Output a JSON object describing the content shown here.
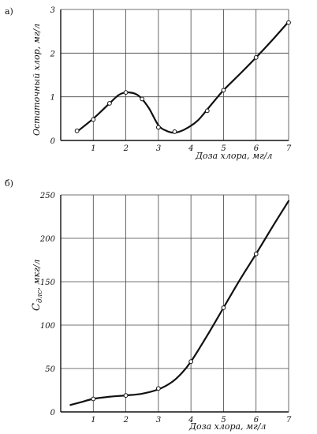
{
  "chart_data": [
    {
      "panel_label": "а)",
      "type": "line",
      "xlabel": "Доза хлора, мг/л",
      "ylabel": "Остаточный хлор, мг/л",
      "x_ticks": [
        "1",
        "2",
        "3",
        "4",
        "5",
        "6",
        "7"
      ],
      "y_ticks": [
        "0",
        "1",
        "2",
        "3"
      ],
      "xlim": [
        0,
        7
      ],
      "ylim": [
        0,
        3
      ],
      "grid": true,
      "markers": "open-circle",
      "points": [
        {
          "x": 0.5,
          "y": 0.22
        },
        {
          "x": 1.0,
          "y": 0.48
        },
        {
          "x": 1.5,
          "y": 0.85
        },
        {
          "x": 2.0,
          "y": 1.1
        },
        {
          "x": 2.5,
          "y": 0.95
        },
        {
          "x": 3.0,
          "y": 0.3
        },
        {
          "x": 3.5,
          "y": 0.2
        },
        {
          "x": 4.5,
          "y": 0.68
        },
        {
          "x": 5.0,
          "y": 1.15
        },
        {
          "x": 6.0,
          "y": 1.9
        },
        {
          "x": 7.0,
          "y": 2.7
        }
      ],
      "curve": [
        {
          "x": 0.5,
          "y": 0.2
        },
        {
          "x": 1.0,
          "y": 0.5
        },
        {
          "x": 1.5,
          "y": 0.85
        },
        {
          "x": 1.8,
          "y": 1.05
        },
        {
          "x": 2.1,
          "y": 1.1
        },
        {
          "x": 2.4,
          "y": 1.02
        },
        {
          "x": 2.7,
          "y": 0.75
        },
        {
          "x": 3.0,
          "y": 0.35
        },
        {
          "x": 3.25,
          "y": 0.22
        },
        {
          "x": 3.5,
          "y": 0.18
        },
        {
          "x": 3.8,
          "y": 0.25
        },
        {
          "x": 4.2,
          "y": 0.45
        },
        {
          "x": 4.6,
          "y": 0.8
        },
        {
          "x": 5.0,
          "y": 1.15
        },
        {
          "x": 5.5,
          "y": 1.52
        },
        {
          "x": 6.0,
          "y": 1.9
        },
        {
          "x": 6.5,
          "y": 2.3
        },
        {
          "x": 7.0,
          "y": 2.72
        }
      ]
    },
    {
      "panel_label": "б)",
      "type": "line",
      "xlabel": "Доза хлора, мг/л",
      "ylabel": "C_ДЛС, мкг/л",
      "ylabel_main": "C",
      "ylabel_sub": "длс",
      "ylabel_rest": ", мкг/л",
      "x_ticks": [
        "1",
        "2",
        "3",
        "4",
        "5",
        "6",
        "7"
      ],
      "y_ticks": [
        "0",
        "50",
        "100",
        "150",
        "200",
        "250"
      ],
      "xlim": [
        0,
        7
      ],
      "ylim": [
        0,
        250
      ],
      "grid": true,
      "markers": "open-circle",
      "points": [
        {
          "x": 1.0,
          "y": 15
        },
        {
          "x": 2.0,
          "y": 19
        },
        {
          "x": 3.0,
          "y": 27
        },
        {
          "x": 4.0,
          "y": 58
        },
        {
          "x": 5.0,
          "y": 120
        },
        {
          "x": 6.0,
          "y": 182
        }
      ],
      "curve": [
        {
          "x": 0.3,
          "y": 8
        },
        {
          "x": 0.6,
          "y": 11
        },
        {
          "x": 1.0,
          "y": 15
        },
        {
          "x": 1.5,
          "y": 17.5
        },
        {
          "x": 2.0,
          "y": 19
        },
        {
          "x": 2.5,
          "y": 21
        },
        {
          "x": 3.0,
          "y": 26
        },
        {
          "x": 3.4,
          "y": 34
        },
        {
          "x": 3.7,
          "y": 44
        },
        {
          "x": 4.0,
          "y": 58
        },
        {
          "x": 4.5,
          "y": 88
        },
        {
          "x": 5.0,
          "y": 120
        },
        {
          "x": 5.5,
          "y": 152
        },
        {
          "x": 6.0,
          "y": 182
        },
        {
          "x": 6.5,
          "y": 213
        },
        {
          "x": 7.0,
          "y": 243
        }
      ]
    }
  ]
}
